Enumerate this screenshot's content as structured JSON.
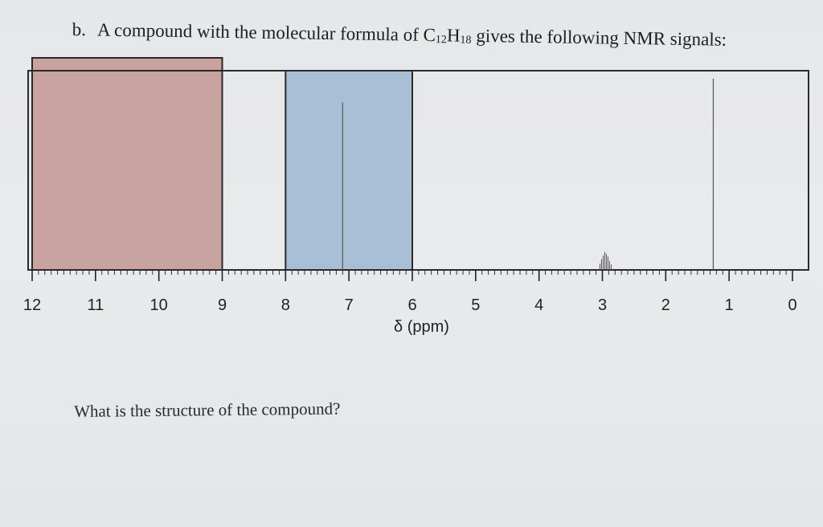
{
  "question": {
    "label": "b.",
    "text_before": "A compound with the molecular formula of C",
    "sub_c": "12",
    "text_h": "H",
    "sub_h": "18",
    "text_after": " gives the following NMR signals:"
  },
  "chart_data": {
    "type": "line",
    "xlabel": "δ (ppm)",
    "xlim": [
      12,
      0
    ],
    "ticks": [
      "12",
      "11",
      "10",
      "9",
      "8",
      "7",
      "6",
      "5",
      "4",
      "3",
      "2",
      "1",
      "0"
    ],
    "shaded_regions": [
      {
        "from": 12,
        "to": 9,
        "color": "#c9a3a0"
      },
      {
        "from": 8,
        "to": 6,
        "color": "#a9bfd6"
      }
    ],
    "peaks": [
      {
        "x": 7.1,
        "height": 0.84,
        "type": "singlet"
      },
      {
        "x": 2.95,
        "height": 0.09,
        "type": "multiplet"
      },
      {
        "x": 1.25,
        "height": 0.96,
        "type": "singlet"
      }
    ]
  },
  "prompt": "What is the structure of the compound?"
}
